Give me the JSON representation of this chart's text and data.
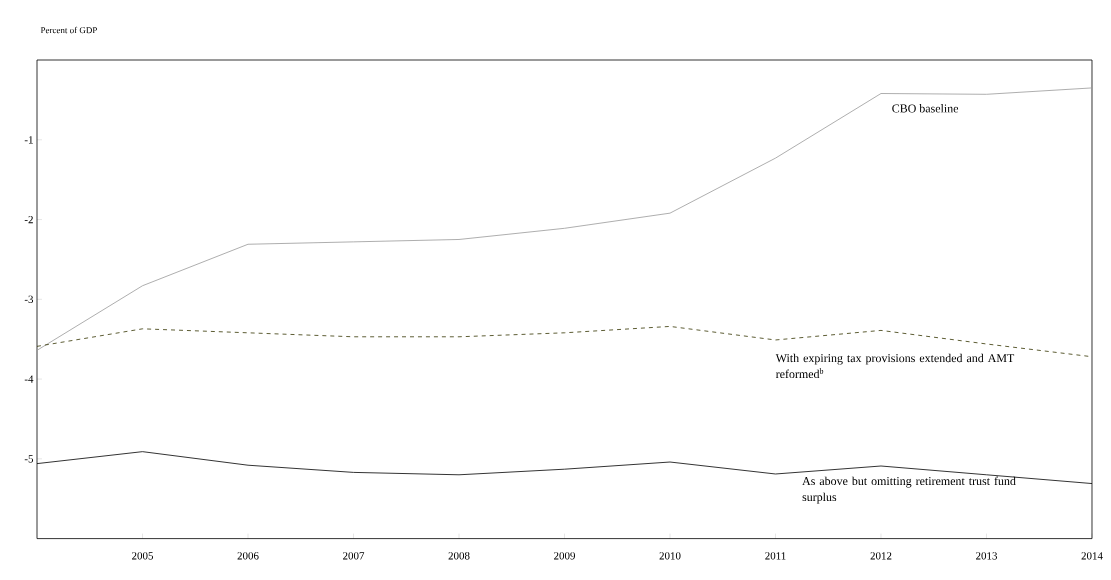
{
  "chart_data": {
    "type": "line",
    "ylabel": "Percent of GDP",
    "x": [
      2004,
      2005,
      2006,
      2007,
      2008,
      2009,
      2010,
      2011,
      2012,
      2013,
      2014
    ],
    "series": [
      {
        "name": "CBO baseline",
        "color": "#999999",
        "line_style": "solid",
        "values": [
          -3.64,
          -2.83,
          -2.31,
          -2.28,
          -2.25,
          -2.11,
          -1.92,
          -1.23,
          -0.42,
          -0.43,
          -0.35
        ]
      },
      {
        "name": "With expiring tax provisions extended and AMT reformed$^{b}$",
        "color": "#333300",
        "line_style": "dashed",
        "values": [
          -3.59,
          -3.37,
          -3.42,
          -3.47,
          -3.47,
          -3.42,
          -3.34,
          -3.51,
          -3.39,
          -3.56,
          -3.72
        ]
      },
      {
        "name": "As above but omitting retirement trust fund surplus",
        "color": "#000000",
        "line_style": "solid",
        "values": [
          -5.06,
          -4.91,
          -5.08,
          -5.17,
          -5.2,
          -5.13,
          -5.04,
          -5.19,
          -5.09,
          -5.2,
          -5.31
        ]
      }
    ],
    "xlim": [
      2004,
      2014
    ],
    "ylim": [
      -6,
      0
    ],
    "xticks": [
      2005,
      2006,
      2007,
      2008,
      2009,
      2010,
      2011,
      2012,
      2013,
      2014
    ],
    "yticks": [
      -1,
      -2,
      -3,
      -4,
      -5
    ],
    "grid": false,
    "legend": false,
    "marker": "none"
  }
}
